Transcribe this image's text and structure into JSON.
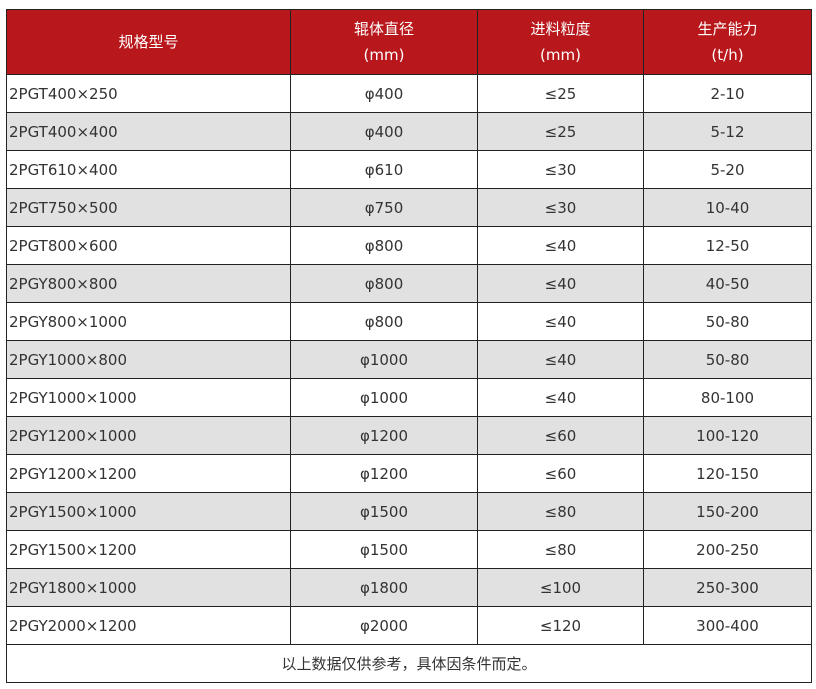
{
  "header": {
    "col1": "规格型号",
    "col2": [
      "辊体直径",
      "(mm)"
    ],
    "col3": [
      "进料粒度",
      "(mm)"
    ],
    "col4": [
      "生产能力",
      "(t/h)"
    ]
  },
  "rows": [
    [
      "2PGT400×250",
      "φ400",
      "≤25",
      "2-10"
    ],
    [
      "2PGT400×400",
      "φ400",
      "≤25",
      "5-12"
    ],
    [
      "2PGT610×400",
      "φ610",
      "≤30",
      "5-20"
    ],
    [
      "2PGT750×500",
      "φ750",
      "≤30",
      "10-40"
    ],
    [
      "2PGT800×600",
      "φ800",
      "≤40",
      "12-50"
    ],
    [
      "2PGY800×800",
      "φ800",
      "≤40",
      "40-50"
    ],
    [
      "2PGY800×1000",
      "φ800",
      "≤40",
      "50-80"
    ],
    [
      "2PGY1000×800",
      "φ1000",
      "≤40",
      "50-80"
    ],
    [
      "2PGY1000×1000",
      "φ1000",
      "≤40",
      "80-100"
    ],
    [
      "2PGY1200×1000",
      "φ1200",
      "≤60",
      "100-120"
    ],
    [
      "2PGY1200×1200",
      "φ1200",
      "≤60",
      "120-150"
    ],
    [
      "2PGY1500×1000",
      "φ1500",
      "≤80",
      "150-200"
    ],
    [
      "2PGY1500×1200",
      "φ1500",
      "≤80",
      "200-250"
    ],
    [
      "2PGY1800×1000",
      "φ1800",
      "≤100",
      "250-300"
    ],
    [
      "2PGY2000×1200",
      "φ2000",
      "≤120",
      "300-400"
    ]
  ],
  "footer": "以上数据仅供参考，具体因条件而定。",
  "colors": {
    "header_bg": "#b8171b",
    "alt_row_bg": "#e1e1e1"
  }
}
